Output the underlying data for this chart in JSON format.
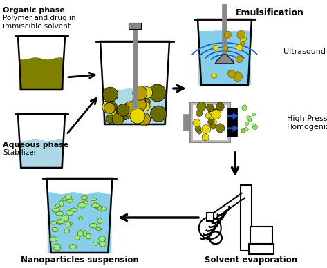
{
  "bg_color": "#ffffff",
  "organic_phase_label": "Organic phase",
  "organic_phase_sub": "Polymer and drug in\nimmiscible solvent",
  "aqueous_phase_label": "Aqueous phase",
  "aqueous_phase_sub": "Stabilizer",
  "emulsification_label": "Emulsification",
  "ultrasound_label": "Ultrasound",
  "high_pressure_label": "High Pressure\nHomogenization",
  "nanoparticles_label": "Nanoparticles suspension",
  "solvent_label": "Solvent evaporation",
  "olive_dark": "#6b6b00",
  "olive_color": "#808000",
  "olive_light": "#b5a000",
  "yellow_color": "#e8d800",
  "blue_light": "#add8e6",
  "blue_bright": "#1565c0",
  "gray_color": "#888888",
  "gray_light": "#bbbbbb",
  "gray_dark": "#555555",
  "green_olive": "#6b8c00",
  "green_light": "#90ee90",
  "teal_light": "#87ceeb",
  "black": "#000000",
  "white": "#ffffff"
}
